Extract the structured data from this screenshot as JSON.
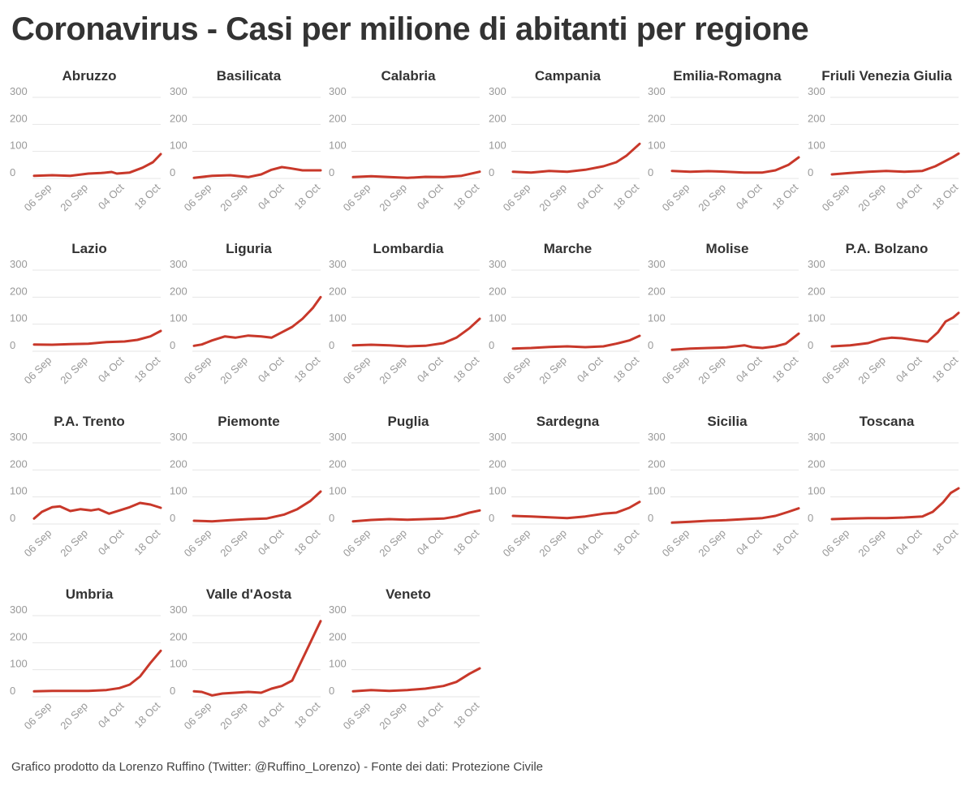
{
  "title": "Coronavirus - Casi per milione di abitanti per regione",
  "footer": "Grafico prodotto da Lorenzo Ruffino (Twitter: @Ruffino_Lorenzo) - Fonte dei dati: Protezione Civile",
  "colors": {
    "line": "#c8382a",
    "grid": "#e6e6e6",
    "tick": "#999999"
  },
  "chart_data": {
    "type": "line",
    "layout": "small-multiples",
    "y_ticks": [
      0,
      100,
      200,
      300
    ],
    "ylim": [
      0,
      300
    ],
    "x_range": [
      "2020-08-30",
      "2020-10-18"
    ],
    "x_ticks": [
      {
        "date": "2020-09-06",
        "label": "06 Sep"
      },
      {
        "date": "2020-09-20",
        "label": "20 Sep"
      },
      {
        "date": "2020-10-04",
        "label": "04 Oct"
      },
      {
        "date": "2020-10-18",
        "label": "18 Oct"
      }
    ],
    "series": [
      {
        "name": "Abruzzo",
        "points": [
          [
            "2020-08-30",
            10
          ],
          [
            "2020-09-06",
            12
          ],
          [
            "2020-09-13",
            10
          ],
          [
            "2020-09-20",
            18
          ],
          [
            "2020-09-25",
            20
          ],
          [
            "2020-09-29",
            24
          ],
          [
            "2020-10-01",
            18
          ],
          [
            "2020-10-06",
            22
          ],
          [
            "2020-10-11",
            40
          ],
          [
            "2020-10-15",
            60
          ],
          [
            "2020-10-18",
            90
          ]
        ]
      },
      {
        "name": "Basilicata",
        "points": [
          [
            "2020-08-30",
            2
          ],
          [
            "2020-09-06",
            10
          ],
          [
            "2020-09-13",
            12
          ],
          [
            "2020-09-20",
            5
          ],
          [
            "2020-09-25",
            15
          ],
          [
            "2020-09-29",
            32
          ],
          [
            "2020-10-03",
            42
          ],
          [
            "2020-10-06",
            38
          ],
          [
            "2020-10-11",
            30
          ],
          [
            "2020-10-18",
            30
          ]
        ]
      },
      {
        "name": "Calabria",
        "points": [
          [
            "2020-08-30",
            5
          ],
          [
            "2020-09-06",
            8
          ],
          [
            "2020-09-13",
            5
          ],
          [
            "2020-09-20",
            2
          ],
          [
            "2020-09-27",
            6
          ],
          [
            "2020-10-04",
            5
          ],
          [
            "2020-10-11",
            10
          ],
          [
            "2020-10-18",
            25
          ]
        ]
      },
      {
        "name": "Campania",
        "points": [
          [
            "2020-08-30",
            25
          ],
          [
            "2020-09-06",
            22
          ],
          [
            "2020-09-13",
            28
          ],
          [
            "2020-09-20",
            25
          ],
          [
            "2020-09-27",
            32
          ],
          [
            "2020-10-04",
            45
          ],
          [
            "2020-10-09",
            60
          ],
          [
            "2020-10-13",
            85
          ],
          [
            "2020-10-18",
            128
          ]
        ]
      },
      {
        "name": "Emilia-Romagna",
        "points": [
          [
            "2020-08-30",
            28
          ],
          [
            "2020-09-06",
            25
          ],
          [
            "2020-09-13",
            27
          ],
          [
            "2020-09-20",
            25
          ],
          [
            "2020-09-27",
            22
          ],
          [
            "2020-10-04",
            22
          ],
          [
            "2020-10-09",
            30
          ],
          [
            "2020-10-14",
            50
          ],
          [
            "2020-10-18",
            78
          ]
        ]
      },
      {
        "name": "Friuli Venezia Giulia",
        "points": [
          [
            "2020-08-30",
            15
          ],
          [
            "2020-09-06",
            20
          ],
          [
            "2020-09-13",
            25
          ],
          [
            "2020-09-20",
            28
          ],
          [
            "2020-09-27",
            25
          ],
          [
            "2020-10-04",
            28
          ],
          [
            "2020-10-09",
            45
          ],
          [
            "2020-10-13",
            65
          ],
          [
            "2020-10-16",
            80
          ],
          [
            "2020-10-18",
            92
          ]
        ]
      },
      {
        "name": "Lazio",
        "points": [
          [
            "2020-08-30",
            25
          ],
          [
            "2020-09-06",
            24
          ],
          [
            "2020-09-13",
            26
          ],
          [
            "2020-09-20",
            28
          ],
          [
            "2020-09-27",
            34
          ],
          [
            "2020-10-04",
            36
          ],
          [
            "2020-10-09",
            42
          ],
          [
            "2020-10-14",
            55
          ],
          [
            "2020-10-18",
            75
          ]
        ]
      },
      {
        "name": "Liguria",
        "points": [
          [
            "2020-08-30",
            20
          ],
          [
            "2020-09-02",
            25
          ],
          [
            "2020-09-06",
            40
          ],
          [
            "2020-09-11",
            55
          ],
          [
            "2020-09-15",
            50
          ],
          [
            "2020-09-20",
            58
          ],
          [
            "2020-09-25",
            55
          ],
          [
            "2020-09-29",
            50
          ],
          [
            "2020-10-03",
            70
          ],
          [
            "2020-10-07",
            90
          ],
          [
            "2020-10-11",
            120
          ],
          [
            "2020-10-15",
            160
          ],
          [
            "2020-10-18",
            200
          ]
        ]
      },
      {
        "name": "Lombardia",
        "points": [
          [
            "2020-08-30",
            22
          ],
          [
            "2020-09-06",
            24
          ],
          [
            "2020-09-13",
            22
          ],
          [
            "2020-09-20",
            18
          ],
          [
            "2020-09-27",
            20
          ],
          [
            "2020-10-04",
            30
          ],
          [
            "2020-10-09",
            50
          ],
          [
            "2020-10-14",
            85
          ],
          [
            "2020-10-18",
            120
          ]
        ]
      },
      {
        "name": "Marche",
        "points": [
          [
            "2020-08-30",
            10
          ],
          [
            "2020-09-06",
            12
          ],
          [
            "2020-09-13",
            16
          ],
          [
            "2020-09-20",
            18
          ],
          [
            "2020-09-27",
            15
          ],
          [
            "2020-10-04",
            18
          ],
          [
            "2020-10-09",
            28
          ],
          [
            "2020-10-14",
            40
          ],
          [
            "2020-10-18",
            57
          ]
        ]
      },
      {
        "name": "Molise",
        "points": [
          [
            "2020-08-30",
            5
          ],
          [
            "2020-09-06",
            10
          ],
          [
            "2020-09-13",
            12
          ],
          [
            "2020-09-20",
            14
          ],
          [
            "2020-09-27",
            22
          ],
          [
            "2020-09-30",
            15
          ],
          [
            "2020-10-04",
            12
          ],
          [
            "2020-10-09",
            18
          ],
          [
            "2020-10-13",
            28
          ],
          [
            "2020-10-18",
            65
          ]
        ]
      },
      {
        "name": "P.A. Bolzano",
        "points": [
          [
            "2020-08-30",
            18
          ],
          [
            "2020-09-06",
            22
          ],
          [
            "2020-09-13",
            30
          ],
          [
            "2020-09-18",
            45
          ],
          [
            "2020-09-22",
            50
          ],
          [
            "2020-09-26",
            48
          ],
          [
            "2020-10-02",
            40
          ],
          [
            "2020-10-06",
            35
          ],
          [
            "2020-10-10",
            70
          ],
          [
            "2020-10-13",
            110
          ],
          [
            "2020-10-16",
            125
          ],
          [
            "2020-10-18",
            142
          ]
        ]
      },
      {
        "name": "P.A. Trento",
        "points": [
          [
            "2020-08-30",
            20
          ],
          [
            "2020-09-02",
            45
          ],
          [
            "2020-09-06",
            62
          ],
          [
            "2020-09-09",
            65
          ],
          [
            "2020-09-13",
            48
          ],
          [
            "2020-09-17",
            55
          ],
          [
            "2020-09-21",
            50
          ],
          [
            "2020-09-24",
            55
          ],
          [
            "2020-09-28",
            38
          ],
          [
            "2020-10-02",
            50
          ],
          [
            "2020-10-06",
            62
          ],
          [
            "2020-10-10",
            78
          ],
          [
            "2020-10-14",
            72
          ],
          [
            "2020-10-18",
            60
          ]
        ]
      },
      {
        "name": "Piemonte",
        "points": [
          [
            "2020-08-30",
            12
          ],
          [
            "2020-09-06",
            10
          ],
          [
            "2020-09-13",
            14
          ],
          [
            "2020-09-20",
            18
          ],
          [
            "2020-09-27",
            20
          ],
          [
            "2020-10-04",
            35
          ],
          [
            "2020-10-09",
            55
          ],
          [
            "2020-10-14",
            85
          ],
          [
            "2020-10-18",
            120
          ]
        ]
      },
      {
        "name": "Puglia",
        "points": [
          [
            "2020-08-30",
            10
          ],
          [
            "2020-09-06",
            15
          ],
          [
            "2020-09-13",
            18
          ],
          [
            "2020-09-20",
            16
          ],
          [
            "2020-09-27",
            18
          ],
          [
            "2020-10-04",
            20
          ],
          [
            "2020-10-09",
            28
          ],
          [
            "2020-10-14",
            42
          ],
          [
            "2020-10-18",
            50
          ]
        ]
      },
      {
        "name": "Sardegna",
        "points": [
          [
            "2020-08-30",
            30
          ],
          [
            "2020-09-06",
            28
          ],
          [
            "2020-09-13",
            25
          ],
          [
            "2020-09-20",
            22
          ],
          [
            "2020-09-27",
            28
          ],
          [
            "2020-10-04",
            38
          ],
          [
            "2020-10-09",
            42
          ],
          [
            "2020-10-14",
            60
          ],
          [
            "2020-10-18",
            82
          ]
        ]
      },
      {
        "name": "Sicilia",
        "points": [
          [
            "2020-08-30",
            5
          ],
          [
            "2020-09-06",
            8
          ],
          [
            "2020-09-13",
            12
          ],
          [
            "2020-09-20",
            14
          ],
          [
            "2020-09-27",
            18
          ],
          [
            "2020-10-04",
            22
          ],
          [
            "2020-10-09",
            30
          ],
          [
            "2020-10-14",
            45
          ],
          [
            "2020-10-18",
            58
          ]
        ]
      },
      {
        "name": "Toscana",
        "points": [
          [
            "2020-08-30",
            18
          ],
          [
            "2020-09-06",
            20
          ],
          [
            "2020-09-13",
            22
          ],
          [
            "2020-09-20",
            22
          ],
          [
            "2020-09-27",
            24
          ],
          [
            "2020-10-04",
            28
          ],
          [
            "2020-10-08",
            45
          ],
          [
            "2020-10-12",
            80
          ],
          [
            "2020-10-15",
            115
          ],
          [
            "2020-10-18",
            132
          ]
        ]
      },
      {
        "name": "Umbria",
        "points": [
          [
            "2020-08-30",
            20
          ],
          [
            "2020-09-06",
            22
          ],
          [
            "2020-09-13",
            22
          ],
          [
            "2020-09-20",
            22
          ],
          [
            "2020-09-27",
            25
          ],
          [
            "2020-10-02",
            32
          ],
          [
            "2020-10-06",
            45
          ],
          [
            "2020-10-10",
            75
          ],
          [
            "2020-10-14",
            125
          ],
          [
            "2020-10-18",
            170
          ]
        ]
      },
      {
        "name": "Valle d'Aosta",
        "points": [
          [
            "2020-08-30",
            20
          ],
          [
            "2020-09-02",
            18
          ],
          [
            "2020-09-06",
            5
          ],
          [
            "2020-09-10",
            12
          ],
          [
            "2020-09-15",
            15
          ],
          [
            "2020-09-20",
            18
          ],
          [
            "2020-09-25",
            15
          ],
          [
            "2020-09-29",
            30
          ],
          [
            "2020-10-03",
            40
          ],
          [
            "2020-10-07",
            60
          ],
          [
            "2020-10-10",
            120
          ],
          [
            "2020-10-13",
            180
          ],
          [
            "2020-10-16",
            240
          ],
          [
            "2020-10-18",
            280
          ]
        ]
      },
      {
        "name": "Veneto",
        "points": [
          [
            "2020-08-30",
            20
          ],
          [
            "2020-09-06",
            25
          ],
          [
            "2020-09-13",
            22
          ],
          [
            "2020-09-20",
            25
          ],
          [
            "2020-09-27",
            30
          ],
          [
            "2020-10-04",
            40
          ],
          [
            "2020-10-09",
            55
          ],
          [
            "2020-10-14",
            85
          ],
          [
            "2020-10-18",
            105
          ]
        ]
      }
    ]
  }
}
